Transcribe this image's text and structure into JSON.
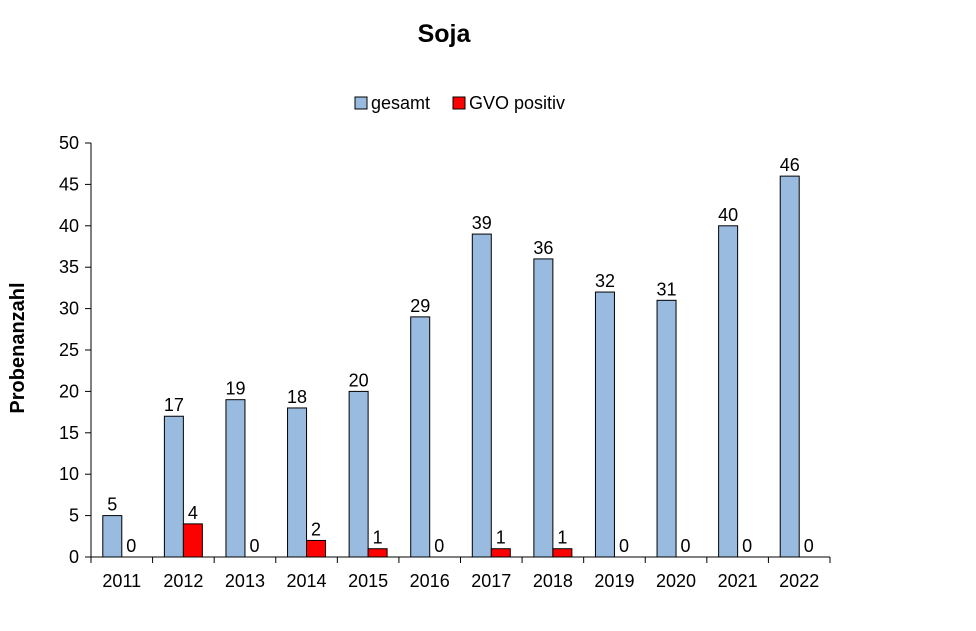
{
  "chart_data": {
    "type": "bar",
    "title": "Soja",
    "xlabel": "",
    "ylabel": "Probenanzahl",
    "categories": [
      "2011",
      "2012",
      "2013",
      "2014",
      "2015",
      "2016",
      "2017",
      "2018",
      "2019",
      "2020",
      "2021",
      "2022"
    ],
    "series": [
      {
        "name": "gesamt",
        "color": "#99bbe0",
        "values": [
          5,
          17,
          19,
          18,
          20,
          29,
          39,
          36,
          32,
          31,
          40,
          46
        ]
      },
      {
        "name": "GVO positiv",
        "color": "#ff0000",
        "values": [
          0,
          4,
          0,
          2,
          1,
          0,
          1,
          1,
          0,
          0,
          0,
          0
        ]
      }
    ],
    "ylim": [
      0,
      50
    ],
    "yticks": [
      0,
      5,
      10,
      15,
      20,
      25,
      30,
      35,
      40,
      45,
      50
    ],
    "grid": false,
    "legend_position": "top-center",
    "data_labels": true
  }
}
